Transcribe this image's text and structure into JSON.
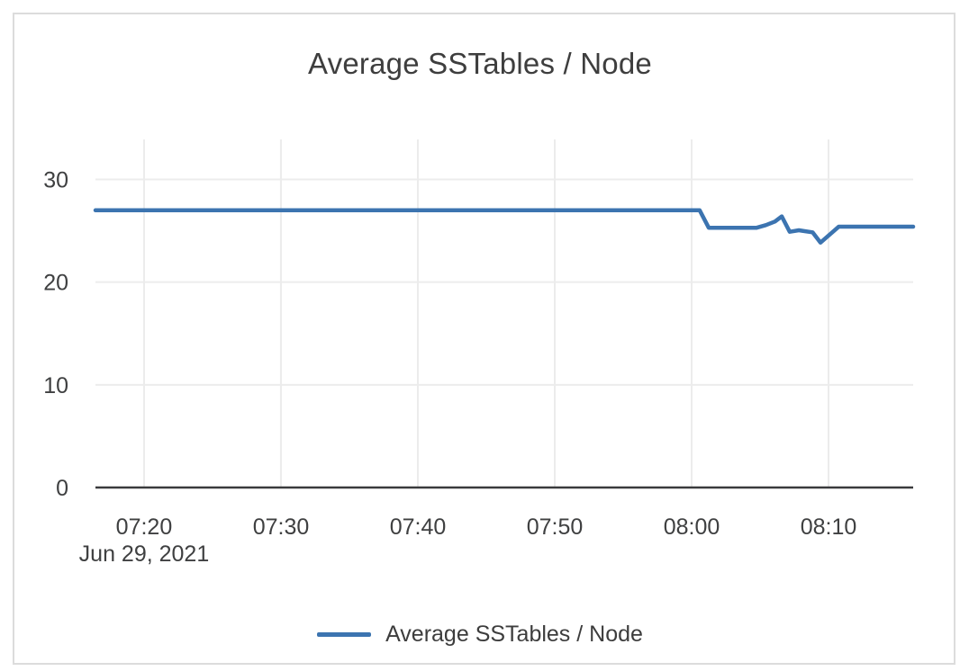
{
  "card": {
    "title": "Average SSTables / Node"
  },
  "legend": {
    "label": "Average SSTables / Node"
  },
  "colors": {
    "line": "#3c74b0",
    "grid": "#ececec",
    "axis": "#3a3b3d",
    "text": "#3f4041",
    "border": "#dcdcdc",
    "background": "#ffffff"
  },
  "chart_data": {
    "type": "line",
    "title": "Average SSTables / Node",
    "legend_position": "bottom",
    "grid": true,
    "x_axis": {
      "start": "07:16:27",
      "end": "08:16:11",
      "tick_labels": [
        "07:20",
        "07:30",
        "07:40",
        "07:50",
        "08:00",
        "08:10"
      ],
      "date_label": "Jun 29, 2021"
    },
    "y_axis": {
      "ticks": [
        0,
        10,
        20,
        30
      ],
      "ylim": [
        0,
        33.9
      ]
    },
    "series": [
      {
        "name": "Average SSTables / Node",
        "color": "#3c74b0",
        "points": [
          [
            "07:16:27",
            27
          ],
          [
            "08:00:35",
            27
          ],
          [
            "08:01:15",
            25.3
          ],
          [
            "08:04:45",
            25.3
          ],
          [
            "08:05:25",
            25.55
          ],
          [
            "08:06:05",
            25.9
          ],
          [
            "08:06:35",
            26.4
          ],
          [
            "08:07:10",
            24.9
          ],
          [
            "08:07:50",
            25.05
          ],
          [
            "08:08:50",
            24.85
          ],
          [
            "08:09:25",
            23.85
          ],
          [
            "08:10:45",
            25.4
          ],
          [
            "08:16:11",
            25.4
          ]
        ]
      }
    ]
  }
}
